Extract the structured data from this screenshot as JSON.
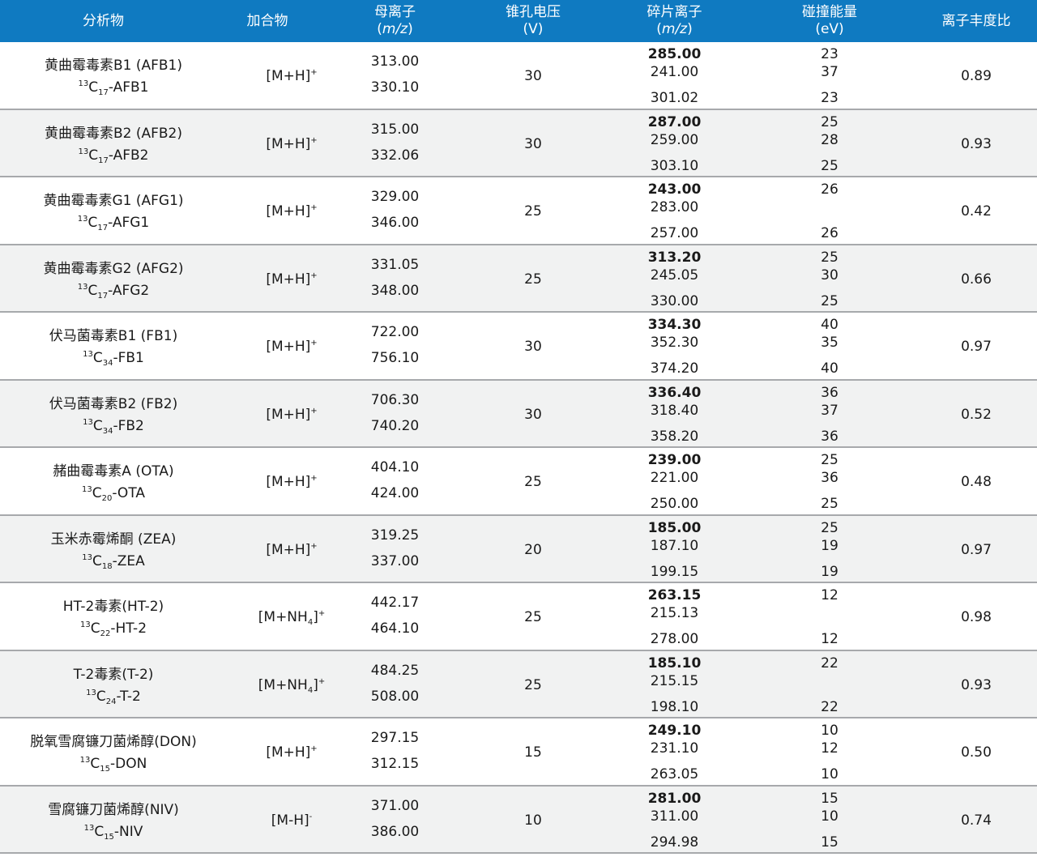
{
  "headers": {
    "analyte": "分析物",
    "adduct": "加合物",
    "parent_line1": "母离子",
    "parent_unit": "m/z",
    "cone_line1": "锥孔电压",
    "cone_unit": "(V)",
    "frag_line1": "碎片离子",
    "frag_unit": "m/z",
    "ce_line1": "碰撞能量",
    "ce_unit": "(eV)",
    "ratio": "离子丰度比"
  },
  "rows": [
    {
      "name": "黄曲霉毒素B1 (AFB1)",
      "is_mass": "13",
      "is_c": "17",
      "is_name": "-AFB1",
      "adduct_base": "[M+H]",
      "adduct_charge": "+",
      "adduct_sub": "",
      "adduct_tail": "",
      "parent1": "313.00",
      "parent2": "330.10",
      "cone": "30",
      "frag1": "285.00",
      "frag2": "241.00",
      "frag3": "301.02",
      "ce1": "23",
      "ce2": "37",
      "ce3": "23",
      "ratio": "0.89"
    },
    {
      "name": "黄曲霉毒素B2 (AFB2)",
      "is_mass": "13",
      "is_c": "17",
      "is_name": "-AFB2",
      "adduct_base": "[M+H]",
      "adduct_charge": "+",
      "adduct_sub": "",
      "adduct_tail": "",
      "parent1": "315.00",
      "parent2": "332.06",
      "cone": "30",
      "frag1": "287.00",
      "frag2": "259.00",
      "frag3": "303.10",
      "ce1": "25",
      "ce2": "28",
      "ce3": "25",
      "ratio": "0.93"
    },
    {
      "name": "黄曲霉毒素G1 (AFG1)",
      "is_mass": "13",
      "is_c": "17",
      "is_name": "-AFG1",
      "adduct_base": "[M+H]",
      "adduct_charge": "+",
      "adduct_sub": "",
      "adduct_tail": "",
      "parent1": "329.00",
      "parent2": "346.00",
      "cone": "25",
      "frag1": "243.00",
      "frag2": "283.00",
      "frag3": "257.00",
      "ce1": "26",
      "ce2": "",
      "ce3": "26",
      "ratio": "0.42"
    },
    {
      "name": "黄曲霉毒素G2 (AFG2)",
      "is_mass": "13",
      "is_c": "17",
      "is_name": "-AFG2",
      "adduct_base": "[M+H]",
      "adduct_charge": "+",
      "adduct_sub": "",
      "adduct_tail": "",
      "parent1": "331.05",
      "parent2": "348.00",
      "cone": "25",
      "frag1": "313.20",
      "frag2": "245.05",
      "frag3": "330.00",
      "ce1": "25",
      "ce2": "30",
      "ce3": "25",
      "ratio": "0.66"
    },
    {
      "name": "伏马菌毒素B1 (FB1)",
      "is_mass": "13",
      "is_c": "34",
      "is_name": "-FB1",
      "adduct_base": "[M+H]",
      "adduct_charge": "+",
      "adduct_sub": "",
      "adduct_tail": "",
      "parent1": "722.00",
      "parent2": "756.10",
      "cone": "30",
      "frag1": "334.30",
      "frag2": "352.30",
      "frag3": "374.20",
      "ce1": "40",
      "ce2": "35",
      "ce3": "40",
      "ratio": "0.97"
    },
    {
      "name": "伏马菌毒素B2 (FB2)",
      "is_mass": "13",
      "is_c": "34",
      "is_name": "-FB2",
      "adduct_base": "[M+H]",
      "adduct_charge": "+",
      "adduct_sub": "",
      "adduct_tail": "",
      "parent1": "706.30",
      "parent2": "740.20",
      "cone": "30",
      "frag1": "336.40",
      "frag2": "318.40",
      "frag3": "358.20",
      "ce1": "36",
      "ce2": "37",
      "ce3": "36",
      "ratio": "0.52"
    },
    {
      "name": "赭曲霉毒素A (OTA)",
      "is_mass": "13",
      "is_c": "20",
      "is_name": "-OTA",
      "adduct_base": "[M+H]",
      "adduct_charge": "+",
      "adduct_sub": "",
      "adduct_tail": "",
      "parent1": "404.10",
      "parent2": "424.00",
      "cone": "25",
      "frag1": "239.00",
      "frag2": "221.00",
      "frag3": "250.00",
      "ce1": "25",
      "ce2": "36",
      "ce3": "25",
      "ratio": "0.48"
    },
    {
      "name": "玉米赤霉烯酮 (ZEA)",
      "is_mass": "13",
      "is_c": "18",
      "is_name": "-ZEA",
      "adduct_base": "[M+H]",
      "adduct_charge": "+",
      "adduct_sub": "",
      "adduct_tail": "",
      "parent1": "319.25",
      "parent2": "337.00",
      "cone": "20",
      "frag1": "185.00",
      "frag2": "187.10",
      "frag3": "199.15",
      "ce1": "25",
      "ce2": "19",
      "ce3": "19",
      "ratio": "0.97"
    },
    {
      "name": "HT-2毒素(HT-2)",
      "is_mass": "13",
      "is_c": "22",
      "is_name": "-HT-2",
      "adduct_base": "[M+NH",
      "adduct_charge": "+",
      "adduct_sub": "4",
      "adduct_tail": "]",
      "parent1": "442.17",
      "parent2": "464.10",
      "cone": "25",
      "frag1": "263.15",
      "frag2": "215.13",
      "frag3": "278.00",
      "ce1": "12",
      "ce2": "",
      "ce3": "12",
      "ratio": "0.98"
    },
    {
      "name": "T-2毒素(T-2)",
      "is_mass": "13",
      "is_c": "24",
      "is_name": "-T-2",
      "adduct_base": "[M+NH",
      "adduct_charge": "+",
      "adduct_sub": "4",
      "adduct_tail": "]",
      "parent1": "484.25",
      "parent2": "508.00",
      "cone": "25",
      "frag1": "185.10",
      "frag2": "215.15",
      "frag3": "198.10",
      "ce1": "22",
      "ce2": "",
      "ce3": "22",
      "ratio": "0.93"
    },
    {
      "name": "脱氧雪腐镰刀菌烯醇(DON)",
      "is_mass": "13",
      "is_c": "15",
      "is_name": "-DON",
      "adduct_base": "[M+H]",
      "adduct_charge": "+",
      "adduct_sub": "",
      "adduct_tail": "",
      "parent1": "297.15",
      "parent2": "312.15",
      "cone": "15",
      "frag1": "249.10",
      "frag2": "231.10",
      "frag3": "263.05",
      "ce1": "10",
      "ce2": "12",
      "ce3": "10",
      "ratio": "0.50"
    },
    {
      "name": "雪腐镰刀菌烯醇(NIV)",
      "is_mass": "13",
      "is_c": "15",
      "is_name": "-NIV",
      "adduct_base": "[M-H]",
      "adduct_charge": "-",
      "adduct_sub": "",
      "adduct_tail": "",
      "parent1": "371.00",
      "parent2": "386.00",
      "cone": "10",
      "frag1": "281.00",
      "frag2": "311.00",
      "frag3": "294.98",
      "ce1": "15",
      "ce2": "10",
      "ce3": "15",
      "ratio": "0.74"
    }
  ]
}
